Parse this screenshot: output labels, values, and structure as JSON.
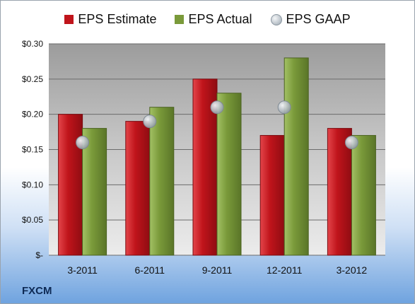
{
  "brand": "FXCM",
  "colors": {
    "estimate": "#c0141b",
    "actual": "#7a9a3a",
    "gaap": "#a6afb8"
  },
  "chart_data": {
    "type": "bar",
    "categories": [
      "3-2011",
      "6-2011",
      "9-2011",
      "12-2011",
      "3-2012"
    ],
    "series": [
      {
        "name": "EPS Estimate",
        "values": [
          0.2,
          0.19,
          0.25,
          0.17,
          0.18
        ]
      },
      {
        "name": "EPS Actual",
        "values": [
          0.18,
          0.21,
          0.23,
          0.28,
          0.17
        ]
      },
      {
        "name": "EPS GAAP",
        "values": [
          0.16,
          0.19,
          0.21,
          0.21,
          0.16
        ],
        "marker": "circle"
      }
    ],
    "ylim": [
      0,
      0.3
    ],
    "yticks": [
      0,
      0.05,
      0.1,
      0.15,
      0.2,
      0.25,
      0.3
    ],
    "ytick_labels": [
      "$-",
      "$0.05",
      "$0.10",
      "$0.15",
      "$0.20",
      "$0.25",
      "$0.30"
    ],
    "grid": true,
    "legend_position": "top"
  }
}
